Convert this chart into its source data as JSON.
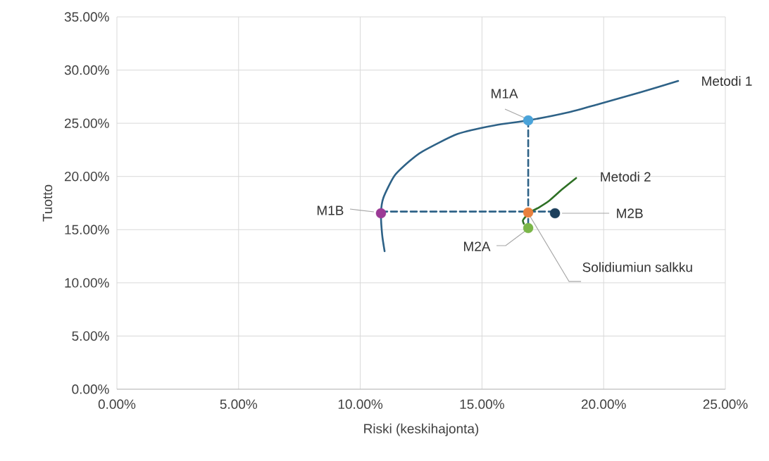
{
  "chart_data": {
    "type": "line",
    "xlabel": "Riski (keskihajonta)",
    "ylabel": "Tuotto",
    "xlim": [
      0,
      25
    ],
    "ylim": [
      0,
      35
    ],
    "xticks": [
      {
        "value": 0,
        "label": "0.00%"
      },
      {
        "value": 5,
        "label": "5.00%"
      },
      {
        "value": 10,
        "label": "10.00%"
      },
      {
        "value": 15,
        "label": "15.00%"
      },
      {
        "value": 20,
        "label": "20.00%"
      },
      {
        "value": 25,
        "label": "25.00%"
      }
    ],
    "yticks": [
      {
        "value": 0,
        "label": "0.00%"
      },
      {
        "value": 5,
        "label": "5.00%"
      },
      {
        "value": 10,
        "label": "10.00%"
      },
      {
        "value": 15,
        "label": "15.00%"
      },
      {
        "value": 20,
        "label": "20.00%"
      },
      {
        "value": 25,
        "label": "25.00%"
      },
      {
        "value": 30,
        "label": "30.00%"
      },
      {
        "value": 35,
        "label": "35.00%"
      }
    ],
    "grid": true,
    "legend": false,
    "series": [
      {
        "name": "Metodi 1",
        "marker": "none",
        "color": "#2e6287",
        "x": [
          11.0,
          10.9,
          10.85,
          10.95,
          11.4,
          12.0,
          12.56,
          14.0,
          15.5,
          16.9,
          18.5,
          19.79,
          21.5,
          23.06
        ],
        "values": [
          12.97,
          14.5,
          16.54,
          18.0,
          20.05,
          21.4,
          22.36,
          24.0,
          24.8,
          25.27,
          26.0,
          26.8,
          27.9,
          28.98
        ]
      },
      {
        "name": "Metodi 2",
        "marker": "none",
        "color": "#2e7025",
        "x": [
          16.72,
          16.68,
          16.75,
          16.95,
          17.35,
          17.77,
          18.3,
          18.87
        ],
        "values": [
          15.55,
          15.85,
          16.1,
          16.61,
          17.1,
          17.73,
          18.8,
          19.85
        ]
      },
      {
        "marker": "none",
        "line_style": "dashed",
        "color": "#2e6287",
        "x": [
          10.85,
          18.0
        ],
        "values": [
          16.7,
          16.7
        ]
      },
      {
        "marker": "none",
        "line_style": "dashed",
        "color": "#2e6287",
        "x": [
          16.9,
          16.9
        ],
        "values": [
          25.27,
          15.15
        ]
      },
      {
        "name": "M1A",
        "type": "scatter",
        "marker": "circle",
        "color": "#4aa3d9",
        "x": [
          16.9
        ],
        "values": [
          25.27
        ]
      },
      {
        "name": "M1B",
        "type": "scatter",
        "marker": "circle",
        "color": "#9b3a96",
        "x": [
          10.85
        ],
        "values": [
          16.54
        ]
      },
      {
        "name": "Solidiumiun salkku",
        "type": "scatter",
        "marker": "circle",
        "color": "#e8803e",
        "x": [
          16.9
        ],
        "values": [
          16.61
        ]
      },
      {
        "name": "M2A",
        "type": "scatter",
        "marker": "circle",
        "color": "#7ab648",
        "x": [
          16.9
        ],
        "values": [
          15.15
        ]
      },
      {
        "name": "M2B",
        "type": "scatter",
        "marker": "circle",
        "color": "#1c3f5c",
        "x": [
          18.0
        ],
        "values": [
          16.54
        ]
      }
    ]
  }
}
